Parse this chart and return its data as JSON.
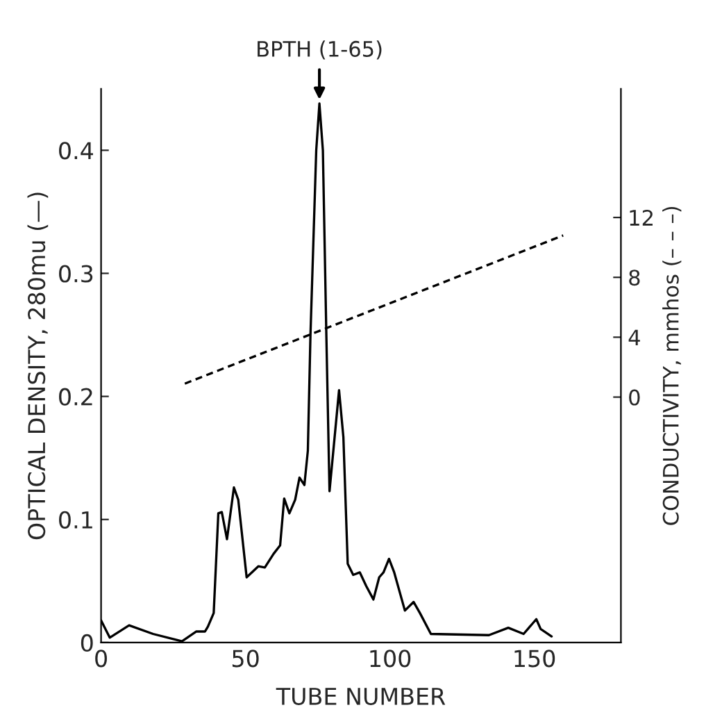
{
  "chart_data": {
    "type": "line",
    "xlabel": "TUBE NUMBER",
    "ylabel": "OPTICAL DENSITY, 280mu (—)",
    "y2label": "CONDUCTIVITY, mmhos (– – –)",
    "annotations": [
      {
        "text": "BPTH (1-65)",
        "x": 75.6,
        "y": 0.438
      }
    ],
    "xlim": [
      0,
      180
    ],
    "xticks": [
      0,
      50,
      100,
      150
    ],
    "ylim": [
      0,
      0.45
    ],
    "yticks": [
      0,
      0.1,
      0.2,
      0.3,
      0.4
    ],
    "y2lim": [
      -16.4,
      20.6
    ],
    "y2ticks": [
      0,
      4,
      8,
      12
    ],
    "grid": false,
    "legend": false,
    "series": [
      {
        "color": "#000000",
        "line_style": "solid",
        "x": [
          0,
          3,
          9.7,
          18,
          28,
          33,
          36,
          37,
          39,
          40.6,
          41.8,
          43.6,
          46,
          47.5,
          50.4,
          54.5,
          56.7,
          59.7,
          62,
          63.4,
          65.2,
          67.2,
          68.7,
          70.4,
          71.6,
          72.5,
          74.5,
          75.6,
          76.8,
          78,
          79.1,
          82.4,
          83.9,
          85.4,
          87.3,
          89.6,
          91.8,
          94.3,
          96.3,
          97.8,
          99.7,
          101.5,
          105.2,
          108.2,
          110.4,
          114.2,
          134.3,
          141,
          146.3,
          150.7,
          152.2,
          156
        ],
        "values": [
          0.018,
          0.004,
          0.014,
          0.007,
          0.001,
          0.009,
          0.009,
          0.013,
          0.024,
          0.105,
          0.106,
          0.084,
          0.126,
          0.116,
          0.053,
          0.062,
          0.061,
          0.072,
          0.079,
          0.117,
          0.105,
          0.116,
          0.134,
          0.128,
          0.156,
          0.25,
          0.4,
          0.438,
          0.4,
          0.25,
          0.123,
          0.205,
          0.167,
          0.064,
          0.055,
          0.057,
          0.046,
          0.035,
          0.053,
          0.057,
          0.068,
          0.057,
          0.026,
          0.033,
          0.024,
          0.007,
          0.006,
          0.012,
          0.007,
          0.019,
          0.011,
          0.005
        ]
      },
      {
        "color": "#000000",
        "line_style": "dashed",
        "axis": "y2",
        "x": [
          29,
          160
        ],
        "values": [
          0.9,
          10.8
        ]
      }
    ]
  }
}
